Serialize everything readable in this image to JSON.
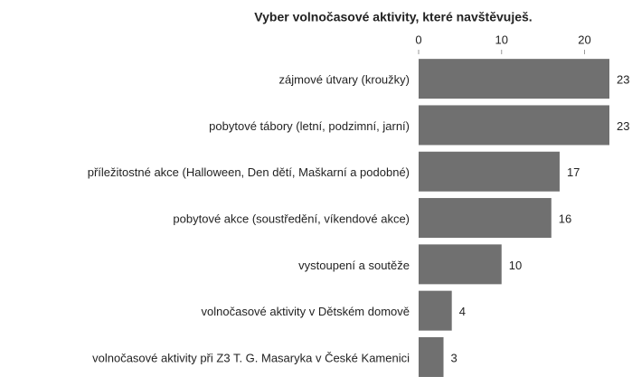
{
  "chart_data": {
    "type": "bar",
    "orientation": "horizontal",
    "title": "Vyber volnočasové aktivity, které navštěvuješ.",
    "categories": [
      "zájmové útvary (kroužky)",
      "pobytové tábory (letní, podzimní, jarní)",
      "příležitostné akce (Halloween, Den dětí, Maškarní a podobné)",
      "pobytové akce (soustředění, víkendové akce)",
      "vystoupení a soutěže",
      "volnočasové aktivity v Dětském domově",
      "volnočasové aktivity při Z3 T. G. Masaryka v České Kamenici"
    ],
    "values": [
      23,
      23,
      17,
      16,
      10,
      4,
      3
    ],
    "color": "#707070",
    "xlim": [
      0,
      23
    ],
    "xticks": [
      0,
      10,
      20
    ]
  }
}
